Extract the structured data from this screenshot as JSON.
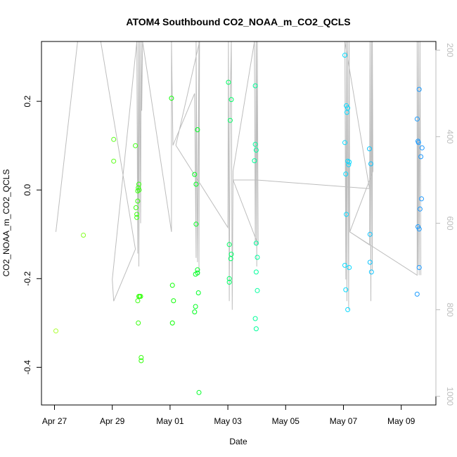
{
  "chart_data": {
    "type": "scatter",
    "title": "ATOM4 Southbound CO2_NOAA_m_CO2_QCLS",
    "xlabel": "Date",
    "ylabel": "CO2_NOAA_m_CO2_QCLS",
    "x_ticks": [
      "Apr 27",
      "Apr 29",
      "May 01",
      "May 03",
      "May 05",
      "May 07",
      "May 09"
    ],
    "x_tick_days": [
      0,
      2,
      4,
      6,
      8,
      10,
      12
    ],
    "xlim_days": [
      -0.45,
      13.2
    ],
    "y_ticks": [
      -0.4,
      -0.2,
      0.0,
      0.2
    ],
    "y_tick_labels": [
      "-0.4",
      "-0.2",
      "0.0",
      "0.2"
    ],
    "ylim": [
      -0.485,
      0.335
    ],
    "y2_ticks": [
      200,
      400,
      600,
      800,
      1000
    ],
    "y2_lim": [
      1020,
      180
    ],
    "grid": false,
    "point_colors_by_time": [
      "#adff2f",
      "#00ff00",
      "#00ffff",
      "#1e90ff"
    ],
    "line_color": "#bdbdbd",
    "points": [
      {
        "x": 0.05,
        "y": -0.318
      },
      {
        "x": 1.0,
        "y": -0.102
      },
      {
        "x": 2.05,
        "y": 0.114
      },
      {
        "x": 2.05,
        "y": 0.065
      },
      {
        "x": 2.8,
        "y": 0.1
      },
      {
        "x": 2.82,
        "y": -0.04
      },
      {
        "x": 2.85,
        "y": -0.055
      },
      {
        "x": 2.85,
        "y": -0.062
      },
      {
        "x": 2.88,
        "y": -0.025
      },
      {
        "x": 2.88,
        "y": -0.002
      },
      {
        "x": 2.9,
        "y": 0.005
      },
      {
        "x": 2.92,
        "y": 0.013
      },
      {
        "x": 2.93,
        "y": 0.0
      },
      {
        "x": 2.88,
        "y": -0.25
      },
      {
        "x": 2.9,
        "y": -0.3
      },
      {
        "x": 2.92,
        "y": -0.24
      },
      {
        "x": 2.95,
        "y": -0.24
      },
      {
        "x": 2.98,
        "y": -0.24
      },
      {
        "x": 3.0,
        "y": -0.378
      },
      {
        "x": 3.0,
        "y": -0.385
      },
      {
        "x": 4.05,
        "y": 0.207
      },
      {
        "x": 4.08,
        "y": -0.215
      },
      {
        "x": 4.08,
        "y": -0.3
      },
      {
        "x": 4.12,
        "y": -0.25
      },
      {
        "x": 4.85,
        "y": 0.035
      },
      {
        "x": 4.85,
        "y": -0.275
      },
      {
        "x": 4.88,
        "y": -0.263
      },
      {
        "x": 4.88,
        "y": -0.19
      },
      {
        "x": 4.9,
        "y": 0.013
      },
      {
        "x": 4.9,
        "y": -0.077
      },
      {
        "x": 4.95,
        "y": 0.136
      },
      {
        "x": 4.95,
        "y": -0.18
      },
      {
        "x": 4.95,
        "y": -0.187
      },
      {
        "x": 4.98,
        "y": -0.232
      },
      {
        "x": 5.0,
        "y": -0.457
      },
      {
        "x": 6.02,
        "y": 0.243
      },
      {
        "x": 6.05,
        "y": -0.123
      },
      {
        "x": 6.05,
        "y": -0.2
      },
      {
        "x": 6.05,
        "y": -0.208
      },
      {
        "x": 6.08,
        "y": 0.157
      },
      {
        "x": 6.1,
        "y": -0.155
      },
      {
        "x": 6.12,
        "y": 0.204
      },
      {
        "x": 6.12,
        "y": -0.145
      },
      {
        "x": 6.92,
        "y": 0.066
      },
      {
        "x": 6.95,
        "y": 0.235
      },
      {
        "x": 6.95,
        "y": 0.103
      },
      {
        "x": 6.95,
        "y": -0.29
      },
      {
        "x": 6.98,
        "y": 0.09
      },
      {
        "x": 6.98,
        "y": -0.12
      },
      {
        "x": 6.98,
        "y": -0.185
      },
      {
        "x": 6.98,
        "y": -0.313
      },
      {
        "x": 7.02,
        "y": -0.152
      },
      {
        "x": 7.02,
        "y": -0.227
      },
      {
        "x": 10.05,
        "y": 0.304
      },
      {
        "x": 10.05,
        "y": 0.107
      },
      {
        "x": 10.05,
        "y": -0.17
      },
      {
        "x": 10.08,
        "y": 0.036
      },
      {
        "x": 10.08,
        "y": -0.225
      },
      {
        "x": 10.1,
        "y": 0.19
      },
      {
        "x": 10.12,
        "y": 0.175
      },
      {
        "x": 10.1,
        "y": -0.055
      },
      {
        "x": 10.15,
        "y": 0.185
      },
      {
        "x": 10.15,
        "y": 0.065
      },
      {
        "x": 10.15,
        "y": -0.27
      },
      {
        "x": 10.18,
        "y": 0.057
      },
      {
        "x": 10.2,
        "y": 0.063
      },
      {
        "x": 10.2,
        "y": -0.175
      },
      {
        "x": 10.9,
        "y": 0.093
      },
      {
        "x": 10.92,
        "y": -0.1
      },
      {
        "x": 10.92,
        "y": -0.163
      },
      {
        "x": 10.95,
        "y": 0.059
      },
      {
        "x": 10.97,
        "y": -0.185
      },
      {
        "x": 12.55,
        "y": 0.16
      },
      {
        "x": 12.58,
        "y": 0.11
      },
      {
        "x": 12.58,
        "y": -0.083
      },
      {
        "x": 12.55,
        "y": -0.235
      },
      {
        "x": 12.6,
        "y": 0.107
      },
      {
        "x": 12.62,
        "y": 0.227
      },
      {
        "x": 12.62,
        "y": -0.088
      },
      {
        "x": 12.62,
        "y": -0.175
      },
      {
        "x": 12.65,
        "y": -0.043
      },
      {
        "x": 12.68,
        "y": 0.075
      },
      {
        "x": 12.7,
        "y": -0.02
      },
      {
        "x": 12.72,
        "y": 0.095
      }
    ],
    "altitude_track": [
      {
        "x": 0.05,
        "y2": 620
      },
      {
        "x": 0.8,
        "y2": 160
      },
      {
        "x": 1.6,
        "y2": 160
      },
      {
        "x": 2.8,
        "y2": 660
      },
      {
        "x": 2.05,
        "y2": 780
      },
      {
        "x": 2.0,
        "y2": 730
      },
      {
        "x": 2.85,
        "y2": 180
      },
      {
        "x": 2.88,
        "y2": 670
      },
      {
        "x": 2.9,
        "y2": 180
      },
      {
        "x": 2.92,
        "y2": 700
      },
      {
        "x": 2.95,
        "y2": 180
      },
      {
        "x": 2.98,
        "y2": 600
      },
      {
        "x": 3.0,
        "y2": 180
      },
      {
        "x": 3.02,
        "y2": 340
      },
      {
        "x": 3.05,
        "y2": 180
      },
      {
        "x": 4.05,
        "y2": 620
      },
      {
        "x": 4.05,
        "y2": 180
      },
      {
        "x": 4.1,
        "y2": 420
      },
      {
        "x": 4.85,
        "y2": 300
      },
      {
        "x": 4.9,
        "y2": 680
      },
      {
        "x": 4.9,
        "y2": 180
      },
      {
        "x": 4.95,
        "y2": 690
      },
      {
        "x": 5.0,
        "y2": 180
      },
      {
        "x": 5.0,
        "y2": 720
      },
      {
        "x": 5.02,
        "y2": 180
      },
      {
        "x": 4.2,
        "y2": 420
      },
      {
        "x": 6.0,
        "y2": 610
      },
      {
        "x": 6.02,
        "y2": 180
      },
      {
        "x": 6.05,
        "y2": 780
      },
      {
        "x": 6.08,
        "y2": 320
      },
      {
        "x": 6.12,
        "y2": 180
      },
      {
        "x": 6.15,
        "y2": 800
      },
      {
        "x": 6.18,
        "y2": 480
      },
      {
        "x": 6.92,
        "y2": 180
      },
      {
        "x": 6.95,
        "y2": 650
      },
      {
        "x": 6.98,
        "y2": 180
      },
      {
        "x": 7.0,
        "y2": 700
      },
      {
        "x": 7.02,
        "y2": 180
      },
      {
        "x": 7.05,
        "y2": 650
      },
      {
        "x": 6.18,
        "y2": 500
      },
      {
        "x": 7.0,
        "y2": 500
      },
      {
        "x": 10.9,
        "y2": 520
      },
      {
        "x": 10.05,
        "y2": 180
      },
      {
        "x": 10.08,
        "y2": 730
      },
      {
        "x": 10.1,
        "y2": 180
      },
      {
        "x": 10.12,
        "y2": 780
      },
      {
        "x": 10.15,
        "y2": 180
      },
      {
        "x": 10.18,
        "y2": 800
      },
      {
        "x": 10.2,
        "y2": 180
      },
      {
        "x": 10.22,
        "y2": 620
      },
      {
        "x": 10.9,
        "y2": 650
      },
      {
        "x": 10.92,
        "y2": 180
      },
      {
        "x": 10.95,
        "y2": 780
      },
      {
        "x": 10.97,
        "y2": 180
      },
      {
        "x": 11.0,
        "y2": 710
      },
      {
        "x": 11.0,
        "y2": 180
      },
      {
        "x": 11.02,
        "y2": 480
      },
      {
        "x": 10.22,
        "y2": 620
      },
      {
        "x": 12.55,
        "y2": 720
      },
      {
        "x": 12.55,
        "y2": 180
      },
      {
        "x": 12.58,
        "y2": 700
      },
      {
        "x": 12.6,
        "y2": 180
      },
      {
        "x": 12.62,
        "y2": 720
      },
      {
        "x": 12.65,
        "y2": 180
      },
      {
        "x": 12.68,
        "y2": 720
      }
    ]
  }
}
